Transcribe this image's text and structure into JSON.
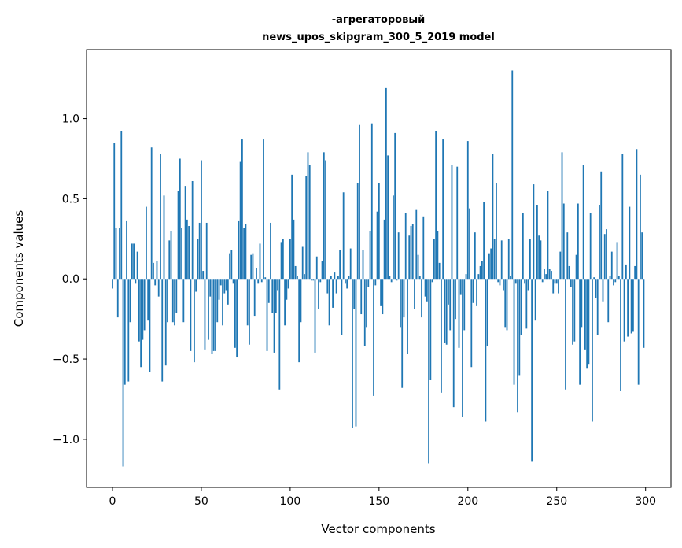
{
  "chart_data": {
    "type": "bar",
    "title": [
      "-агрегаторовый",
      "news_upos_skipgram_300_5_2019 model"
    ],
    "xlabel": "Vector components",
    "ylabel": "Components values",
    "xlim": [
      -14.6,
      314.3
    ],
    "ylim": [
      -1.3,
      1.43
    ],
    "grid": false,
    "bar_color": "#1f77b4",
    "xticks": [
      0,
      50,
      100,
      150,
      200,
      250,
      300
    ],
    "xtick_labels": [
      "0",
      "50",
      "100",
      "150",
      "200",
      "250",
      "300"
    ],
    "yticks": [
      -1.0,
      -0.5,
      0.0,
      0.5,
      1.0
    ],
    "ytick_labels": [
      "−1.0",
      "−0.5",
      "0.0",
      "0.5",
      "1.0"
    ],
    "values": [
      -0.06,
      0.85,
      0.32,
      -0.24,
      0.32,
      0.92,
      -1.17,
      -0.66,
      0.36,
      -0.64,
      -0.27,
      0.22,
      0.22,
      -0.03,
      0.17,
      -0.39,
      -0.55,
      -0.38,
      -0.32,
      0.45,
      -0.26,
      -0.58,
      0.82,
      0.1,
      -0.04,
      0.11,
      -0.11,
      0.78,
      -0.64,
      0.52,
      -0.54,
      -0.27,
      0.24,
      0.3,
      -0.27,
      -0.29,
      -0.21,
      0.55,
      0.75,
      0.32,
      -0.27,
      0.58,
      0.37,
      0.33,
      -0.45,
      0.61,
      -0.52,
      -0.08,
      0.25,
      0.35,
      0.74,
      0.05,
      -0.44,
      0.35,
      -0.38,
      -0.11,
      -0.47,
      -0.45,
      -0.45,
      -0.27,
      -0.13,
      -0.04,
      -0.29,
      -0.09,
      -0.07,
      -0.16,
      0.16,
      0.18,
      -0.03,
      -0.43,
      -0.49,
      0.36,
      0.73,
      0.87,
      0.32,
      0.34,
      -0.29,
      -0.41,
      0.15,
      0.16,
      -0.23,
      0.07,
      -0.03,
      0.22,
      -0.02,
      0.87,
      0.01,
      -0.45,
      -0.15,
      0.35,
      -0.21,
      -0.46,
      -0.21,
      -0.07,
      -0.69,
      0.23,
      0.25,
      -0.29,
      -0.13,
      -0.06,
      0.25,
      0.65,
      0.37,
      0.08,
      0.02,
      -0.52,
      -0.27,
      0.2,
      0.03,
      0.64,
      0.79,
      0.71,
      -0.01,
      -0.01,
      -0.46,
      0.14,
      -0.19,
      -0.02,
      0.11,
      0.79,
      0.74,
      -0.09,
      -0.29,
      0.02,
      -0.18,
      0.04,
      -0.09,
      0.02,
      0.18,
      -0.35,
      0.54,
      -0.03,
      -0.06,
      0.02,
      0.19,
      -0.93,
      -0.19,
      -0.92,
      0.6,
      0.96,
      -0.22,
      0.18,
      -0.42,
      -0.3,
      -0.05,
      0.3,
      0.97,
      -0.73,
      -0.04,
      0.42,
      0.6,
      -0.17,
      -0.22,
      0.37,
      1.19,
      0.77,
      0.02,
      -0.02,
      0.52,
      0.91,
      -0.01,
      0.29,
      -0.3,
      -0.68,
      -0.24,
      0.41,
      -0.47,
      0.27,
      0.33,
      0.34,
      -0.19,
      0.43,
      0.15,
      0.02,
      -0.24,
      0.39,
      -0.11,
      -0.14,
      -1.15,
      -0.63,
      -0.02,
      0.25,
      0.92,
      0.3,
      0.1,
      -0.71,
      0.87,
      -0.4,
      -0.41,
      -0.16,
      -0.32,
      0.71,
      -0.8,
      -0.25,
      0.7,
      -0.43,
      -0.1,
      -0.86,
      -0.32,
      0.03,
      0.86,
      0.44,
      -0.55,
      -0.15,
      0.29,
      -0.17,
      0.03,
      0.08,
      0.11,
      0.48,
      -0.89,
      -0.42,
      0.16,
      0.19,
      0.78,
      0.25,
      0.6,
      -0.02,
      -0.04,
      0.24,
      -0.07,
      -0.3,
      -0.32,
      0.25,
      0.02,
      1.3,
      -0.66,
      -0.03,
      -0.83,
      -0.6,
      -0.35,
      0.41,
      -0.03,
      -0.31,
      -0.07,
      0.25,
      -1.14,
      0.59,
      -0.26,
      0.46,
      0.27,
      0.24,
      -0.02,
      0.06,
      0.03,
      0.55,
      0.06,
      0.05,
      -0.09,
      -0.03,
      -0.03,
      -0.09,
      0.17,
      0.79,
      0.47,
      -0.69,
      0.29,
      0.08,
      -0.05,
      -0.41,
      -0.39,
      0.15,
      0.47,
      -0.66,
      -0.3,
      0.71,
      -0.44,
      -0.56,
      -0.53,
      0.41,
      -0.89,
      0.01,
      -0.12,
      -0.35,
      0.46,
      0.67,
      -0.14,
      0.28,
      0.31,
      -0.27,
      0.02,
      0.17,
      -0.04,
      -0.02,
      0.23,
      0.02,
      -0.7,
      0.78,
      -0.39,
      0.09,
      -0.36,
      0.45,
      -0.34,
      -0.33,
      0.08,
      0.81,
      -0.66,
      0.65,
      0.29,
      -0.43
    ]
  }
}
